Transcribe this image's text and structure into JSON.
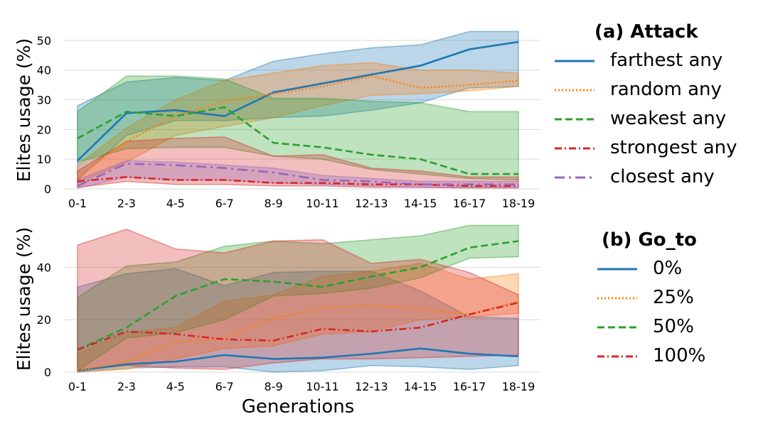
{
  "chart_data": [
    {
      "panel": "a",
      "type": "line",
      "legend_title": "(a) Attack",
      "ylabel": "Elites usage (%)",
      "xlabel": "",
      "ylim": [
        0,
        55
      ],
      "yticks": [
        0,
        10,
        20,
        30,
        40,
        50
      ],
      "categories": [
        "0-1",
        "2-3",
        "4-5",
        "6-7",
        "8-9",
        "10-11",
        "12-13",
        "14-15",
        "16-17",
        "18-19"
      ],
      "series": [
        {
          "name": "farthest any",
          "color": "#1f77b4",
          "dash": "solid",
          "values": [
            9.5,
            25.5,
            26.5,
            24.5,
            32.5,
            35.5,
            38.5,
            41.5,
            47,
            49.5
          ],
          "lower": [
            3,
            18,
            23,
            23,
            24,
            24.5,
            26.5,
            29,
            34,
            34.5
          ],
          "upper": [
            28,
            36,
            37.5,
            36.5,
            43,
            45.5,
            47.5,
            48.5,
            53,
            53
          ]
        },
        {
          "name": "random any",
          "color": "#ff7f0e",
          "dash": "dotted",
          "values": [
            4,
            16,
            24.5,
            29.5,
            32,
            34.5,
            38,
            34,
            35,
            36.5
          ],
          "lower": [
            2,
            9,
            18,
            21,
            24,
            28,
            31.5,
            32,
            33,
            34.5
          ],
          "upper": [
            8,
            20.5,
            30,
            36.5,
            39,
            41.5,
            42.5,
            40,
            40,
            39
          ]
        },
        {
          "name": "weakest any",
          "color": "#2ca02c",
          "dash": "dashed",
          "values": [
            17,
            26,
            24.5,
            27.5,
            15.5,
            14,
            11.5,
            10,
            5,
            5
          ],
          "lower": [
            9,
            13.5,
            14,
            14,
            11,
            10,
            6.5,
            5,
            3.5,
            3
          ],
          "upper": [
            26,
            38,
            38,
            37,
            30.5,
            30.5,
            29.5,
            29,
            26,
            26
          ]
        },
        {
          "name": "strongest any",
          "color": "#d62728",
          "dash": "dashdot",
          "values": [
            2.5,
            4,
            3,
            3,
            2,
            2,
            1.5,
            1.5,
            1,
            1
          ],
          "lower": [
            0.5,
            2.5,
            1.5,
            1.5,
            1,
            1,
            0.5,
            0.5,
            0.3,
            0.3
          ],
          "upper": [
            6,
            16,
            17,
            17.5,
            11,
            11.5,
            7,
            6,
            4,
            4
          ]
        },
        {
          "name": "closest any",
          "color": "#9467bd",
          "dash": "longdash",
          "values": [
            1,
            8.5,
            8,
            7,
            5.5,
            3,
            2.5,
            1.5,
            1.5,
            1.5
          ],
          "lower": [
            0.2,
            4,
            3,
            3,
            2,
            1.5,
            1,
            0.5,
            0.5,
            0.5
          ],
          "upper": [
            3,
            9.5,
            9,
            8,
            7,
            4.5,
            3.5,
            2.5,
            2.5,
            2.5
          ]
        }
      ]
    },
    {
      "panel": "b",
      "type": "line",
      "legend_title": "(b) Go_to",
      "ylabel": "Elites usage (%)",
      "xlabel": "Generations",
      "ylim": [
        0,
        58
      ],
      "yticks": [
        0,
        20,
        40
      ],
      "categories": [
        "0-1",
        "2-3",
        "4-5",
        "6-7",
        "8-9",
        "10-11",
        "12-13",
        "14-15",
        "16-17",
        "18-19"
      ],
      "series": [
        {
          "name": "0%",
          "color": "#1f77b4",
          "dash": "solid",
          "values": [
            0.5,
            3,
            4,
            6.5,
            5,
            5.5,
            7,
            9,
            7,
            6
          ],
          "lower": [
            0,
            1.5,
            2,
            2,
            0,
            0.5,
            2.5,
            2,
            1,
            2.5
          ],
          "upper": [
            32.5,
            37.5,
            39.5,
            33,
            38,
            38.5,
            38.5,
            31,
            21,
            20.5
          ]
        },
        {
          "name": "25%",
          "color": "#ff7f0e",
          "dash": "dotted",
          "values": [
            0.5,
            4,
            11.5,
            13,
            20.5,
            24.5,
            25.5,
            24,
            22,
            27
          ],
          "lower": [
            0,
            1,
            5,
            9,
            10,
            14.5,
            15.5,
            20,
            21,
            22.5
          ],
          "upper": [
            7,
            15,
            17,
            27,
            29.5,
            36.5,
            38.5,
            41.5,
            35.5,
            37.5
          ]
        },
        {
          "name": "50%",
          "color": "#2ca02c",
          "dash": "dashed",
          "values": [
            8.5,
            17,
            29,
            35.5,
            34.5,
            32.5,
            36.5,
            40,
            47.5,
            50
          ],
          "lower": [
            0.5,
            13,
            15,
            20,
            29,
            30,
            32,
            36,
            43.5,
            44
          ],
          "upper": [
            28.5,
            40.5,
            42,
            48,
            50,
            49,
            50.5,
            52,
            56,
            56
          ]
        },
        {
          "name": "100%",
          "color": "#d62728",
          "dash": "dashdot",
          "values": [
            8.5,
            15.5,
            14.5,
            12.5,
            12,
            16.5,
            15.5,
            17,
            22,
            26.5
          ],
          "lower": [
            0.5,
            2.5,
            1.5,
            1,
            3.5,
            5,
            5,
            5.5,
            6,
            6.5
          ],
          "upper": [
            48.5,
            54.5,
            47,
            45.5,
            50,
            50.5,
            41.5,
            43,
            38,
            29.5
          ]
        }
      ]
    }
  ]
}
